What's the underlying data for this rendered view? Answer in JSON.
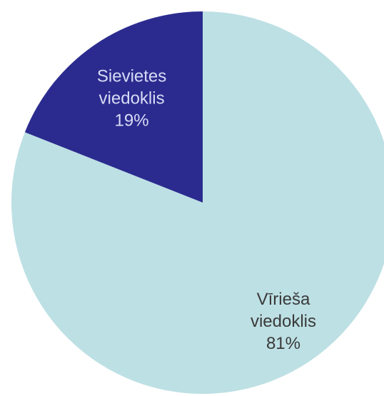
{
  "chart_data": {
    "type": "pie",
    "title": "",
    "slices": [
      {
        "label_line1": "Sievietes",
        "label_line2": "viedoklis",
        "value": 19,
        "value_text": "19%",
        "color": "#2b2b8f",
        "label_color": "#d8dcf5"
      },
      {
        "label_line1": "Vīrieša",
        "label_line2": "viedoklis",
        "value": 81,
        "value_text": "81%",
        "color": "#bde0e4",
        "label_color": "#3a3a3a"
      }
    ],
    "start_angle_deg": -90,
    "direction": "counterclockwise",
    "legend": "none"
  }
}
